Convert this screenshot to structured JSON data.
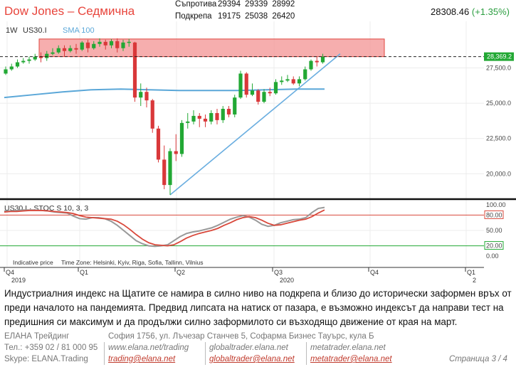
{
  "header": {
    "title": "Dow Jones – Седмична",
    "resistance_label": "Съпротива",
    "resistance_values": "29394  29339  28992",
    "support_label": "Подкрепа",
    "support_values": "19175  25038  26420",
    "price": "28308.46",
    "change": "(+1.35%)"
  },
  "chart": {
    "timeframe": "1W",
    "symbol": "US30.I",
    "sma_label": "SMA 100",
    "current_price_tag": "28,369.2",
    "indicator_label": "US30.I · STOC S 10, 3, 3",
    "footer_note": "Indicative price",
    "timezone_note": "Time Zone: Helsinki, Kyiv, Riga, Sofia, Tallinn, Vilnius",
    "colors": {
      "up": "#22a834",
      "down": "#d9383a",
      "sma": "#5aa7d8",
      "trend": "#6aaee0",
      "zone": "#f5a0a0",
      "zone_border": "#e0443e",
      "stoch_k": "#999999",
      "stoch_d": "#d9483b"
    },
    "price_axis": [
      "27,500.0",
      "25,000.0",
      "22,500.0",
      "20,000.0"
    ],
    "stoch_axis": [
      "100.00",
      "80.00",
      "50.00",
      "20.00",
      "0.00"
    ],
    "time_axis": [
      {
        "top": "Q4",
        "bottom": "2019"
      },
      {
        "top": "Q1",
        "bottom": ""
      },
      {
        "top": "Q2",
        "bottom": ""
      },
      {
        "top": "Q3",
        "bottom": "2020"
      },
      {
        "top": "Q4",
        "bottom": ""
      },
      {
        "top": "Q1",
        "bottom": "2"
      }
    ]
  },
  "chart_data": {
    "type": "candlestick",
    "title": "Dow Jones – Седмична",
    "ylim": [
      18500,
      30500
    ],
    "resistance_zone": [
      28300,
      29550
    ],
    "sma100": [
      25400,
      25600,
      25800,
      25950,
      26000,
      25950,
      25900,
      25900,
      25900,
      25950,
      26000,
      26000
    ],
    "candles": [
      {
        "o": 27100,
        "c": 27400,
        "h": 27600,
        "l": 27000
      },
      {
        "o": 27400,
        "c": 27600,
        "h": 27800,
        "l": 27300
      },
      {
        "o": 27600,
        "c": 27900,
        "h": 28100,
        "l": 27500
      },
      {
        "o": 27900,
        "c": 28000,
        "h": 28200,
        "l": 27800
      },
      {
        "o": 28000,
        "c": 28100,
        "h": 28300,
        "l": 27800
      },
      {
        "o": 28100,
        "c": 28300,
        "h": 28500,
        "l": 28000
      },
      {
        "o": 28300,
        "c": 28200,
        "h": 28600,
        "l": 27900
      },
      {
        "o": 28200,
        "c": 28500,
        "h": 28700,
        "l": 28000
      },
      {
        "o": 28500,
        "c": 28600,
        "h": 28900,
        "l": 28400
      },
      {
        "o": 28600,
        "c": 28900,
        "h": 29100,
        "l": 28500
      },
      {
        "o": 28900,
        "c": 28700,
        "h": 29100,
        "l": 28300
      },
      {
        "o": 28700,
        "c": 28900,
        "h": 29100,
        "l": 28600
      },
      {
        "o": 28900,
        "c": 28800,
        "h": 29200,
        "l": 28500
      },
      {
        "o": 28800,
        "c": 29300,
        "h": 29400,
        "l": 28700
      },
      {
        "o": 29300,
        "c": 28900,
        "h": 29500,
        "l": 28600
      },
      {
        "o": 28900,
        "c": 29200,
        "h": 29400,
        "l": 28800
      },
      {
        "o": 29200,
        "c": 29350,
        "h": 29600,
        "l": 29000
      },
      {
        "o": 29350,
        "c": 29100,
        "h": 29500,
        "l": 28800
      },
      {
        "o": 29100,
        "c": 29400,
        "h": 29550,
        "l": 28900
      },
      {
        "o": 29400,
        "c": 28900,
        "h": 29600,
        "l": 28600
      },
      {
        "o": 28900,
        "c": 29300,
        "h": 29500,
        "l": 28700
      },
      {
        "o": 29300,
        "c": 29350,
        "h": 29560,
        "l": 29000
      },
      {
        "o": 29300,
        "c": 25400,
        "h": 29350,
        "l": 25100
      },
      {
        "o": 25400,
        "c": 25800,
        "h": 26400,
        "l": 24800
      },
      {
        "o": 25800,
        "c": 25200,
        "h": 26100,
        "l": 24700
      },
      {
        "o": 25200,
        "c": 23200,
        "h": 25300,
        "l": 22900
      },
      {
        "o": 23200,
        "c": 21000,
        "h": 23400,
        "l": 20800
      },
      {
        "o": 21000,
        "c": 19200,
        "h": 22000,
        "l": 18900
      },
      {
        "o": 19200,
        "c": 21600,
        "h": 21800,
        "l": 18500
      },
      {
        "o": 21600,
        "c": 21400,
        "h": 22800,
        "l": 20900
      },
      {
        "o": 21400,
        "c": 23600,
        "h": 23800,
        "l": 21200
      },
      {
        "o": 23600,
        "c": 23700,
        "h": 24300,
        "l": 23200
      },
      {
        "o": 23700,
        "c": 24100,
        "h": 24500,
        "l": 23500
      },
      {
        "o": 24100,
        "c": 23900,
        "h": 24300,
        "l": 23300
      },
      {
        "o": 23900,
        "c": 23700,
        "h": 24200,
        "l": 23300
      },
      {
        "o": 23700,
        "c": 24300,
        "h": 24500,
        "l": 23500
      },
      {
        "o": 24300,
        "c": 23800,
        "h": 24600,
        "l": 23500
      },
      {
        "o": 23800,
        "c": 24600,
        "h": 24800,
        "l": 23600
      },
      {
        "o": 24600,
        "c": 24200,
        "h": 24800,
        "l": 24000
      },
      {
        "o": 24200,
        "c": 25400,
        "h": 25600,
        "l": 24000
      },
      {
        "o": 25400,
        "c": 27100,
        "h": 27300,
        "l": 25300
      },
      {
        "o": 27100,
        "c": 25600,
        "h": 27200,
        "l": 25400
      },
      {
        "o": 25600,
        "c": 25900,
        "h": 26400,
        "l": 25500
      },
      {
        "o": 25900,
        "c": 25100,
        "h": 26000,
        "l": 24900
      },
      {
        "o": 25100,
        "c": 25800,
        "h": 26000,
        "l": 25000
      },
      {
        "o": 25800,
        "c": 25700,
        "h": 26100,
        "l": 25500
      },
      {
        "o": 25700,
        "c": 26500,
        "h": 26700,
        "l": 25600
      },
      {
        "o": 26500,
        "c": 26600,
        "h": 26900,
        "l": 26300
      },
      {
        "o": 26600,
        "c": 26700,
        "h": 27000,
        "l": 26500
      },
      {
        "o": 26700,
        "c": 26400,
        "h": 26900,
        "l": 26300
      },
      {
        "o": 26400,
        "c": 26700,
        "h": 26900,
        "l": 26200
      },
      {
        "o": 26700,
        "c": 27400,
        "h": 27600,
        "l": 26600
      },
      {
        "o": 27400,
        "c": 28000,
        "h": 28100,
        "l": 27300
      },
      {
        "o": 28000,
        "c": 27900,
        "h": 28300,
        "l": 27600
      },
      {
        "o": 27900,
        "c": 28300,
        "h": 28500,
        "l": 27800
      }
    ],
    "stoch_k": [
      88,
      88,
      89,
      90,
      90,
      90,
      89,
      88,
      86,
      85,
      84,
      78,
      73,
      72,
      75,
      75,
      73,
      68,
      60,
      50,
      40,
      30,
      24,
      20,
      19,
      20,
      22,
      30,
      38,
      44,
      47,
      49,
      52,
      55,
      60,
      66,
      72,
      76,
      79,
      76,
      70,
      62,
      58,
      60,
      65,
      68,
      71,
      72,
      75,
      85,
      93,
      95
    ],
    "stoch_d": [
      86,
      87,
      87,
      88,
      89,
      89,
      89,
      88,
      87,
      86,
      85,
      83,
      79,
      76,
      75,
      74,
      73,
      72,
      68,
      61,
      52,
      42,
      33,
      26,
      22,
      21,
      20,
      22,
      28,
      35,
      40,
      44,
      47,
      50,
      54,
      60,
      65,
      71,
      75,
      77,
      75,
      70,
      64,
      60,
      61,
      64,
      67,
      70,
      72,
      77,
      84,
      90
    ]
  },
  "description": "Индустриалния индекс на Щатите се намира в силно ниво на подкрепа и близо до исторически заформен връх от преди началото на пандемията. Предвид липсата на натиск от пазара, е възможно индексът да направи тест на предишния си максимум и да продължи силно заформилото си възходящо движение от края на март.",
  "footer": {
    "company": "ЕЛАНА Трейдинг",
    "phone": "Тел.: +359 02 / 81 000 95",
    "skype": "Skype: ELANA.Trading",
    "address": "София 1756, ул. Лъчезар Станчев 5, Софарма Бизнес Тауърс, кула Б",
    "site1": "www.elana.net/trading",
    "site2": "globaltrader.elana.net",
    "site3": "metatrader.elana.net",
    "mail1": "trading@elana.net",
    "mail2": "globaltrader@elana.net",
    "mail3": "metatrader@elana.net",
    "page": "Страница  3 / 4"
  }
}
